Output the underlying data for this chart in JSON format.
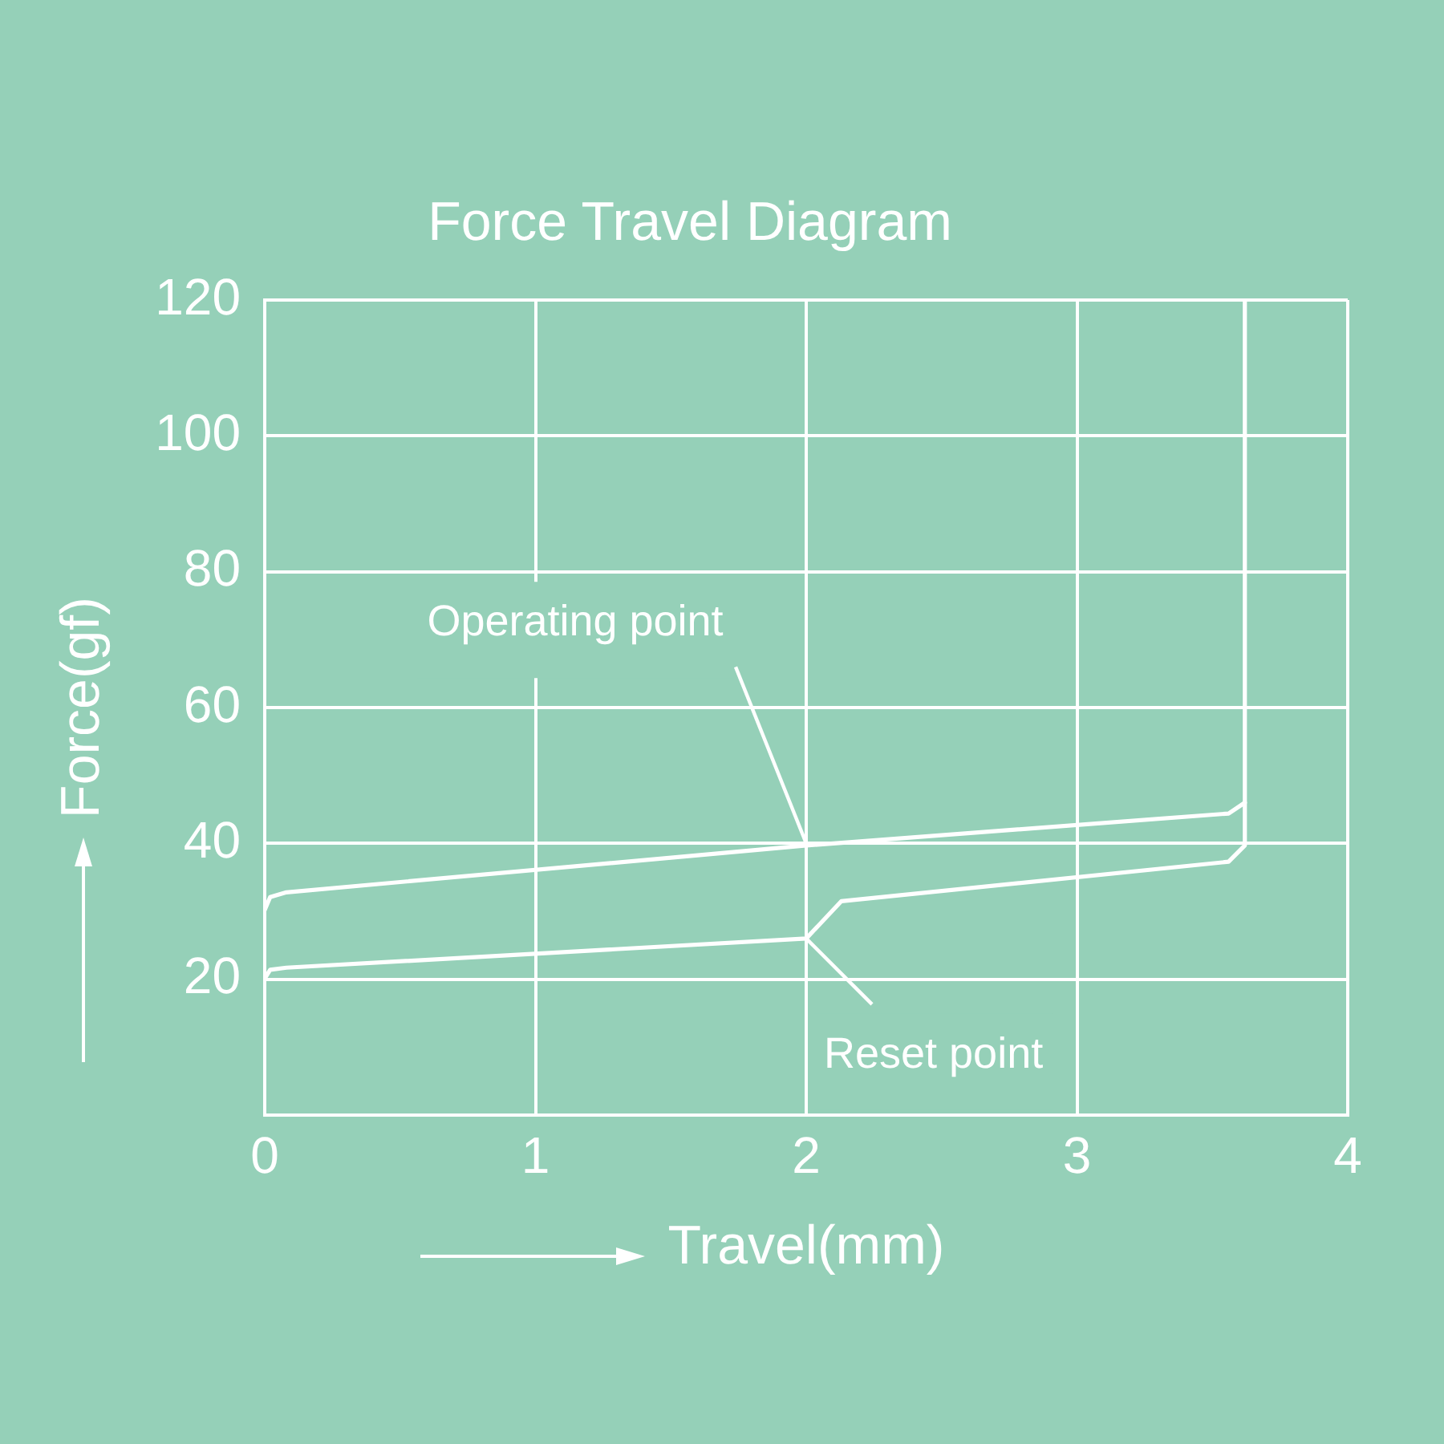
{
  "chart_data": {
    "type": "line",
    "title": "Force Travel Diagram",
    "xlabel": "Travel(mm)",
    "ylabel": "Force(gf)",
    "series": [
      {
        "color": "#ffffff",
        "x": [
          0,
          0.02,
          0.08,
          2,
          3.56,
          3.62
        ],
        "values": [
          30.2,
          32.1,
          32.8,
          39.7,
          44.4,
          46
        ]
      },
      {
        "color": "#ffffff",
        "x": [
          0,
          0.02,
          0.08,
          2,
          2.13,
          3.56,
          3.62,
          3.62
        ],
        "values": [
          20.1,
          21.4,
          21.7,
          26,
          31.5,
          37.3,
          39.7,
          120
        ]
      }
    ],
    "xlim": [
      0,
      4
    ],
    "xticks": [
      0,
      1,
      2,
      3,
      4
    ],
    "ylim": [
      0,
      120
    ],
    "yticks": [
      20,
      40,
      60,
      80,
      100,
      120
    ],
    "grid": true,
    "legend": false,
    "marker": "none",
    "line_style": "solid",
    "annotations": [
      {
        "text": "Operating point",
        "x": 2,
        "y": 40
      },
      {
        "text": "Reset point",
        "x": 2,
        "y": 26
      }
    ]
  }
}
